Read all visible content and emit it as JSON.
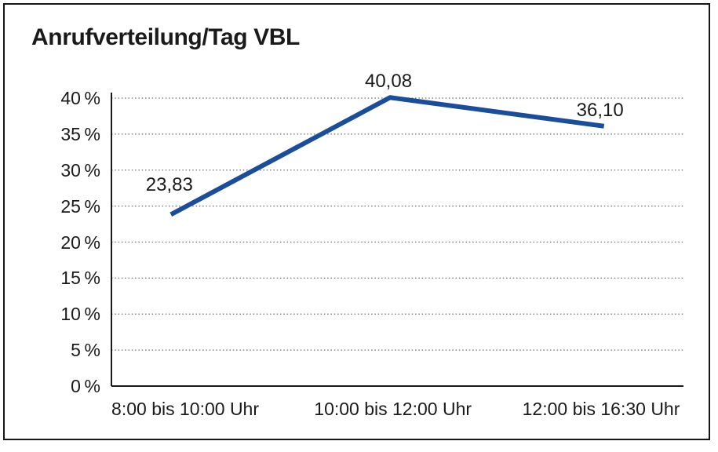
{
  "chart_data": {
    "type": "line",
    "title": "Anrufverteilung/Tag VBL",
    "categories": [
      "8:00 bis 10:00 Uhr",
      "10:00 bis 12:00 Uhr",
      "12:00 bis 16:30 Uhr"
    ],
    "values": [
      23.83,
      40.08,
      36.1
    ],
    "value_labels": [
      "23,83",
      "40,08",
      "36,10"
    ],
    "ytick_labels": [
      "40 %",
      "35 %",
      "30 %",
      "25 %",
      "20 %",
      "15 %",
      "10 %",
      "5 %",
      "0 %"
    ],
    "ytick_values": [
      40,
      35,
      30,
      25,
      20,
      15,
      10,
      5,
      0
    ],
    "ylim": [
      0,
      40
    ],
    "ytick_step": 5,
    "xlabel": "",
    "ylabel": "",
    "legend": "none",
    "grid": "horizontal-dotted",
    "line_color": "#1a4d9a",
    "axis_color": "#1a1a1a",
    "grid_color": "#6e6e6e",
    "text_color": "#1a1a1a",
    "border_color": "#161616"
  }
}
